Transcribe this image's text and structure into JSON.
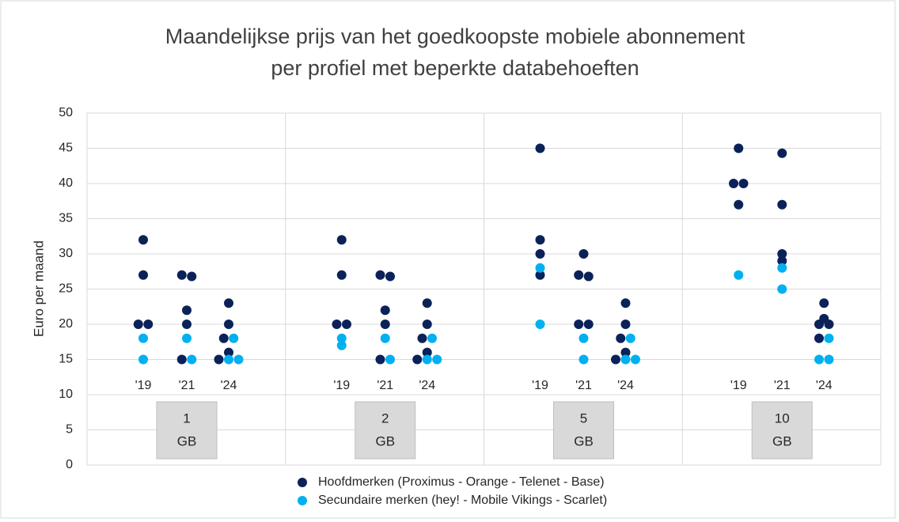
{
  "chart_data": {
    "type": "grouped-dot",
    "title": [
      "Maandelijkse prijs van het goedkoopste mobiele abonnement",
      "per profiel met beperkte databehoeften"
    ],
    "y_label": "Euro per maand",
    "groups": [
      "1",
      "2",
      "5",
      "10"
    ],
    "group_unit": "GB",
    "categories": [
      "'19",
      "'21",
      "'24"
    ],
    "ylim": [
      0,
      50
    ],
    "yticks": [
      0,
      5,
      10,
      15,
      20,
      25,
      30,
      35,
      40,
      45,
      50
    ],
    "grid": true,
    "legend": "bottom",
    "series": [
      {
        "name": "Hoofdmerken (Proximus - Orange - Telenet - Base)",
        "color": "#0b2259",
        "values": [
          [
            [
              32,
              27,
              20,
              20
            ],
            [
              27,
              26.8,
              22,
              20,
              15
            ],
            [
              23,
              20,
              18,
              16,
              15
            ]
          ],
          [
            [
              32,
              27,
              20,
              20
            ],
            [
              27,
              26.8,
              22,
              20,
              15
            ],
            [
              23,
              20,
              18,
              16,
              15
            ]
          ],
          [
            [
              45,
              32,
              30,
              27
            ],
            [
              30,
              27,
              26.8,
              20,
              20
            ],
            [
              23,
              20,
              18,
              16,
              15
            ]
          ],
          [
            [
              45,
              40,
              40,
              37
            ],
            [
              44.3,
              37,
              30,
              29
            ],
            [
              23,
              20.8,
              20,
              20,
              18
            ]
          ]
        ]
      },
      {
        "name": "Secundaire merken (hey! - Mobile Vikings - Scarlet)",
        "color": "#00b0f0",
        "values": [
          [
            [
              18,
              15
            ],
            [
              18,
              15
            ],
            [
              18,
              15,
              15
            ]
          ],
          [
            [
              18,
              17
            ],
            [
              18,
              15
            ],
            [
              18,
              15,
              15
            ]
          ],
          [
            [
              28,
              20
            ],
            [
              18,
              15
            ],
            [
              18,
              15,
              15
            ]
          ],
          [
            [
              27
            ],
            [
              28,
              25
            ],
            [
              18,
              15,
              15
            ]
          ]
        ]
      }
    ]
  }
}
